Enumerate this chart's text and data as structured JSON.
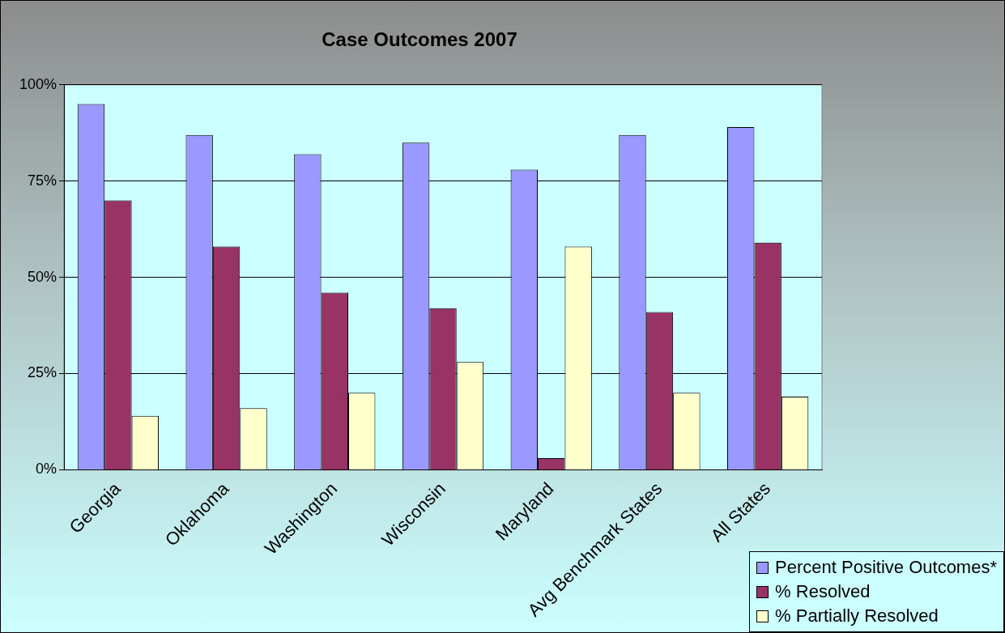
{
  "chart_data": {
    "type": "bar",
    "title": "Case Outcomes 2007",
    "categories": [
      "Georgia",
      "Oklahoma",
      "Washington",
      "Wisconsin",
      "Maryland",
      "Avg Benchmark States",
      "All States"
    ],
    "series": [
      {
        "name": "Percent Positive Outcomes*",
        "color": "#9999ff",
        "values": [
          95,
          87,
          82,
          85,
          78,
          87,
          89
        ]
      },
      {
        "name": "% Resolved",
        "color": "#993366",
        "values": [
          70,
          58,
          46,
          42,
          3,
          41,
          59
        ]
      },
      {
        "name": "% Partially Resolved",
        "color": "#ffffcc",
        "values": [
          14,
          16,
          20,
          28,
          58,
          20,
          19
        ]
      }
    ],
    "ylim": [
      0,
      100
    ],
    "yticks": [
      {
        "value": 0,
        "label": "0%"
      },
      {
        "value": 25,
        "label": "25%"
      },
      {
        "value": 50,
        "label": "50%"
      },
      {
        "value": 75,
        "label": "75%"
      },
      {
        "value": 100,
        "label": "100%"
      }
    ],
    "grid": "y",
    "legend": "bottom right"
  }
}
